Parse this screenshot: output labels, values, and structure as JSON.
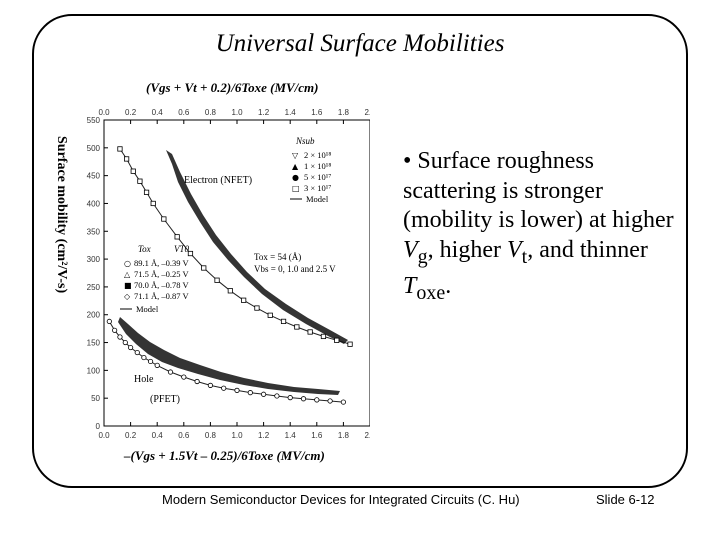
{
  "slide": {
    "title": "Universal Surface Mobilities",
    "bullet": {
      "mark": "•",
      "t1": "Surface roughness scattering is stronger (mobility is lower) at higher ",
      "v": "V",
      "sub_g": "g",
      "t2": ", higher ",
      "sub_t": "t",
      "t3": ", and thinner ",
      "tsym": "T",
      "sub_oxe": "oxe",
      "t4": "."
    },
    "footer_left": "Modern Semiconductor Devices for Integrated Circuits (C. Hu)",
    "footer_right": "Slide 6-12"
  },
  "figure": {
    "ylabel": "Surface mobility (cm²/V-s)",
    "top_axis_label": "(Vgs + Vt + 0.2)/6Toxe (MV/cm)",
    "bottom_axis_label": "–(Vgs + 1.5Vt – 0.25)/6Toxe (MV/cm)",
    "electron_label": "Electron (NFET)",
    "hole_label_1": "Hole",
    "hole_label_2": "(PFET)",
    "nfet_legend": {
      "header": "Nsub",
      "items": [
        "2 × 10¹⁸",
        "1 × 10¹⁸",
        "5 × 10¹⁷",
        "3 × 10¹⁷"
      ],
      "model": "Model",
      "symbols": [
        "▽",
        "▲",
        "●",
        "□"
      ]
    },
    "pfet_legend": {
      "col1": "Tox",
      "col2": "VT0",
      "items": [
        "89.1 Å, –0.39 V",
        "71.5 Å, –0.25 V",
        "70.0 Å, –0.78 V",
        "71.1 Å, –0.87 V"
      ],
      "model": "Model",
      "symbols": [
        "○",
        "△",
        "■",
        "◇"
      ]
    },
    "cond_line_1": "Tox = 54 (Å)",
    "cond_line_2": "Vbs = 0, 1.0 and 2.5 V"
  },
  "chart_data": {
    "type": "scatter",
    "x_ticks": [
      "0.0",
      "0.2",
      "0.4",
      "0.6",
      "0.8",
      "1.0",
      "1.2",
      "1.4",
      "1.6",
      "1.8",
      "2.0"
    ],
    "y_ticks": [
      "0",
      "50",
      "100",
      "150",
      "200",
      "250",
      "300",
      "350",
      "400",
      "450",
      "500",
      "550"
    ],
    "xlim": [
      0,
      2.0
    ],
    "ylim": [
      0,
      550
    ],
    "series": [
      {
        "x": [
          0.12,
          0.17,
          0.22,
          0.27,
          0.32,
          0.37,
          0.45,
          0.55,
          0.65,
          0.75,
          0.85,
          0.95,
          1.05,
          1.15,
          1.25,
          1.35,
          1.45,
          1.55,
          1.65,
          1.75,
          1.85
        ],
        "y": [
          498,
          480,
          458,
          440,
          420,
          400,
          372,
          340,
          310,
          284,
          262,
          243,
          226,
          212,
          199,
          188,
          178,
          169,
          161,
          154,
          147
        ]
      },
      {
        "x": [
          0.04,
          0.08,
          0.12,
          0.16,
          0.2,
          0.25,
          0.3,
          0.35,
          0.4,
          0.5,
          0.6,
          0.7,
          0.8,
          0.9,
          1.0,
          1.1,
          1.2,
          1.3,
          1.4,
          1.5,
          1.6,
          1.7,
          1.8
        ],
        "y": [
          188,
          172,
          160,
          150,
          141,
          132,
          123,
          116,
          109,
          97,
          88,
          80,
          73,
          68,
          64,
          60,
          57,
          54,
          51,
          49,
          47,
          45,
          43
        ]
      }
    ]
  }
}
